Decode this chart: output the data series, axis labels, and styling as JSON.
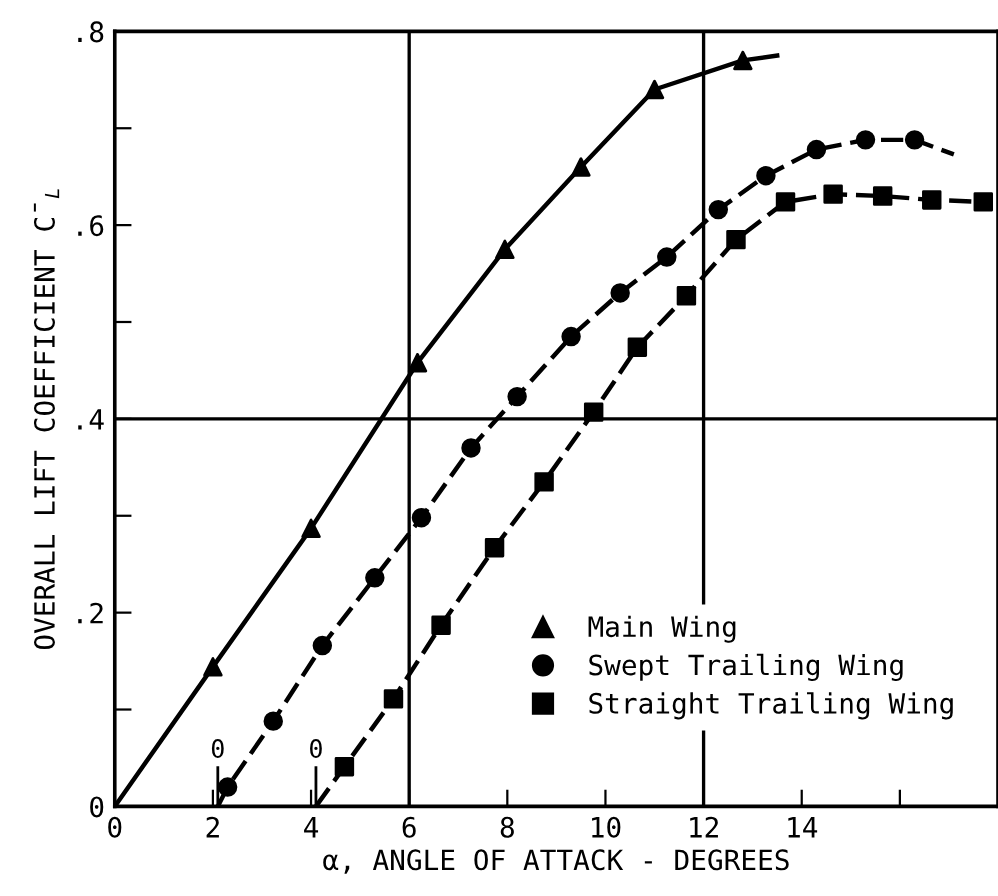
{
  "chart_data": {
    "type": "scatter",
    "xlabel": "α, ANGLE OF ATTACK - DEGREES",
    "ylabel": "OVERALL LIFT COEFFICIENT C̄$_{L}$",
    "xlim": [
      0,
      18
    ],
    "ylim": [
      0,
      0.8
    ],
    "xticks": [
      0,
      2,
      4,
      6,
      8,
      10,
      12,
      14,
      {
        "value": 16,
        "label": null
      }
    ],
    "yticks": [
      0,
      {
        "value": 0.1,
        "label": null
      },
      {
        "value": 0.2,
        "label": ".2"
      },
      {
        "value": 0.3,
        "label": null
      },
      {
        "value": 0.4,
        "label": ".4"
      },
      {
        "value": 0.5,
        "label": null
      },
      {
        "value": 0.6,
        "label": ".6"
      },
      {
        "value": 0.7,
        "label": null
      },
      {
        "value": 0.8,
        "label": ".8"
      }
    ],
    "grid": false,
    "legend": "lower right",
    "ref_lines": [
      {
        "axis": "x",
        "value": 6,
        "color": "#000000"
      },
      {
        "axis": "x",
        "value": 12,
        "color": "#000000"
      },
      {
        "axis": "y",
        "value": 0.4,
        "color": "#000000"
      }
    ],
    "annotations": [
      {
        "text": "0",
        "x": 2.1,
        "y": 0
      },
      {
        "text": "0",
        "x": 4.1,
        "y": 0
      }
    ],
    "series": [
      {
        "name": "Main Wing",
        "color": "#000000",
        "marker": "triangle",
        "x": [
          2.0,
          4.0,
          6.17,
          7.95,
          9.5,
          11.0,
          12.8
        ],
        "values": [
          0.144,
          0.287,
          0.458,
          0.575,
          0.66,
          0.74,
          0.77
        ]
      },
      {
        "name": "Swept Trailing Wing",
        "color": "#000000",
        "marker": "circle",
        "x": [
          2.3,
          3.23,
          4.23,
          5.3,
          6.25,
          7.26,
          8.2,
          9.3,
          10.3,
          11.25,
          12.3,
          13.27,
          14.3,
          15.3,
          16.3
        ],
        "values": [
          0.02,
          0.088,
          0.166,
          0.236,
          0.298,
          0.37,
          0.423,
          0.485,
          0.53,
          0.567,
          0.616,
          0.651,
          0.678,
          0.688,
          0.688
        ]
      },
      {
        "name": "Straight Trailing Wing",
        "color": "#000000",
        "marker": "square",
        "x": [
          4.68,
          5.68,
          6.65,
          7.74,
          8.75,
          9.76,
          10.65,
          11.65,
          12.66,
          13.67,
          14.64,
          15.65,
          16.65,
          17.7
        ],
        "values": [
          0.041,
          0.111,
          0.187,
          0.267,
          0.335,
          0.407,
          0.474,
          0.527,
          0.585,
          0.624,
          0.632,
          0.63,
          0.626,
          0.624
        ]
      },
      {
        "type": "line",
        "color": "#000000",
        "line_style": "solid",
        "x": [
          0,
          2.0,
          4.0,
          6.17,
          7.95,
          9.5,
          11.0,
          12.8,
          13.5
        ],
        "values": [
          0,
          0.144,
          0.287,
          0.458,
          0.575,
          0.66,
          0.74,
          0.77,
          0.775
        ]
      },
      {
        "type": "line",
        "color": "#000000",
        "line_style": "dashed",
        "x": [
          2.1,
          2.3,
          3.23,
          4.23,
          5.3,
          6.25,
          7.26,
          8.2,
          9.3,
          10.3,
          11.25,
          12.3,
          13.27,
          14.3,
          15.3,
          16.3,
          17.1
        ],
        "values": [
          0,
          0.02,
          0.088,
          0.166,
          0.236,
          0.298,
          0.37,
          0.423,
          0.485,
          0.53,
          0.567,
          0.616,
          0.651,
          0.678,
          0.688,
          0.688,
          0.673
        ]
      },
      {
        "type": "line",
        "color": "#000000",
        "line_style": "dashed",
        "x": [
          4.1,
          4.68,
          5.68,
          6.65,
          7.74,
          8.75,
          9.76,
          10.65,
          11.65,
          12.66,
          13.67,
          14.64,
          15.65,
          16.65,
          17.7
        ],
        "values": [
          0,
          0.041,
          0.111,
          0.187,
          0.267,
          0.335,
          0.407,
          0.474,
          0.527,
          0.585,
          0.624,
          0.632,
          0.63,
          0.626,
          0.624
        ]
      }
    ]
  }
}
